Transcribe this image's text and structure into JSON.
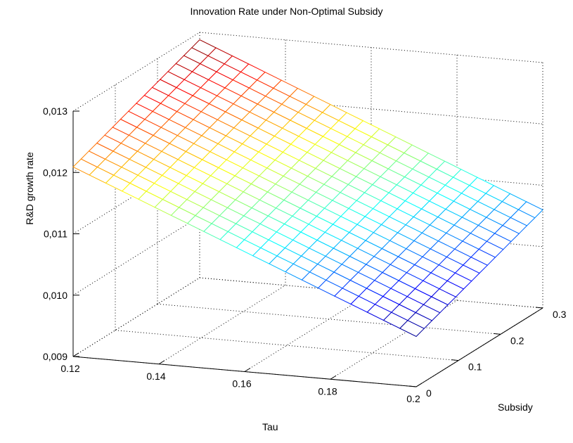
{
  "chart_data": {
    "type": "surface",
    "title": "Innovation Rate under Non-Optimal Subsidy",
    "xlabel": "Tau",
    "ylabel": "Subsidy",
    "zlabel": "R&D growth rate",
    "x_ticks": [
      "0.12",
      "0.14",
      "0.16",
      "0.18",
      "0.2"
    ],
    "y_ticks": [
      "0",
      "0.1",
      "0.2",
      "0.3"
    ],
    "z_ticks": [
      "0,009",
      "0,010",
      "0,011",
      "0,012",
      "0,013"
    ],
    "xlim": [
      0.12,
      0.2
    ],
    "ylim": [
      0,
      0.3
    ],
    "zlim": [
      0.009,
      0.013
    ],
    "grid": true,
    "colormap": "jet",
    "mesh": {
      "nx": 21,
      "ny": 16
    },
    "corners": [
      {
        "tau": 0.12,
        "subsidy": 0.3,
        "rate": 0.01288
      },
      {
        "tau": 0.12,
        "subsidy": 0.0,
        "rate": 0.01209
      },
      {
        "tau": 0.2,
        "subsidy": 0.0,
        "rate": 0.00982
      },
      {
        "tau": 0.2,
        "subsidy": 0.3,
        "rate": 0.0106
      }
    ]
  }
}
